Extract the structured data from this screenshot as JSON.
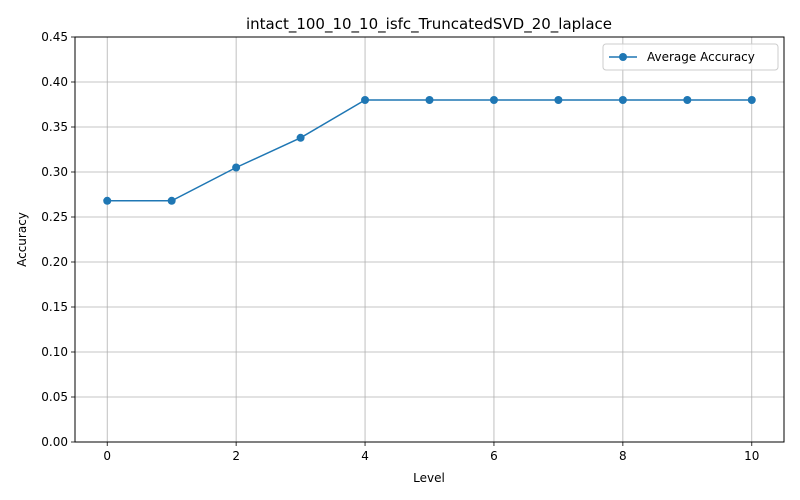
{
  "chart_data": {
    "type": "line",
    "title": "intact_100_10_10_isfc_TruncatedSVD_20_laplace",
    "xlabel": "Level",
    "ylabel": "Accuracy",
    "x": [
      0,
      1,
      2,
      3,
      4,
      5,
      6,
      7,
      8,
      9,
      10
    ],
    "series": [
      {
        "name": "Average Accuracy",
        "color": "#1f77b4",
        "values": [
          0.268,
          0.268,
          0.305,
          0.338,
          0.38,
          0.38,
          0.38,
          0.38,
          0.38,
          0.38,
          0.38
        ]
      }
    ],
    "xlim": [
      -0.5,
      10.5
    ],
    "ylim": [
      0,
      0.45
    ],
    "xticks": [
      0,
      2,
      4,
      6,
      8,
      10
    ],
    "xtick_labels": [
      "0",
      "2",
      "4",
      "6",
      "8",
      "10"
    ],
    "yticks": [
      0,
      0.05,
      0.1,
      0.15,
      0.2,
      0.25,
      0.3,
      0.35,
      0.4,
      0.45
    ],
    "ytick_labels": [
      "0.00",
      "0.05",
      "0.10",
      "0.15",
      "0.20",
      "0.25",
      "0.30",
      "0.35",
      "0.40",
      "0.45"
    ],
    "grid": true,
    "legend_position": "top-right"
  }
}
